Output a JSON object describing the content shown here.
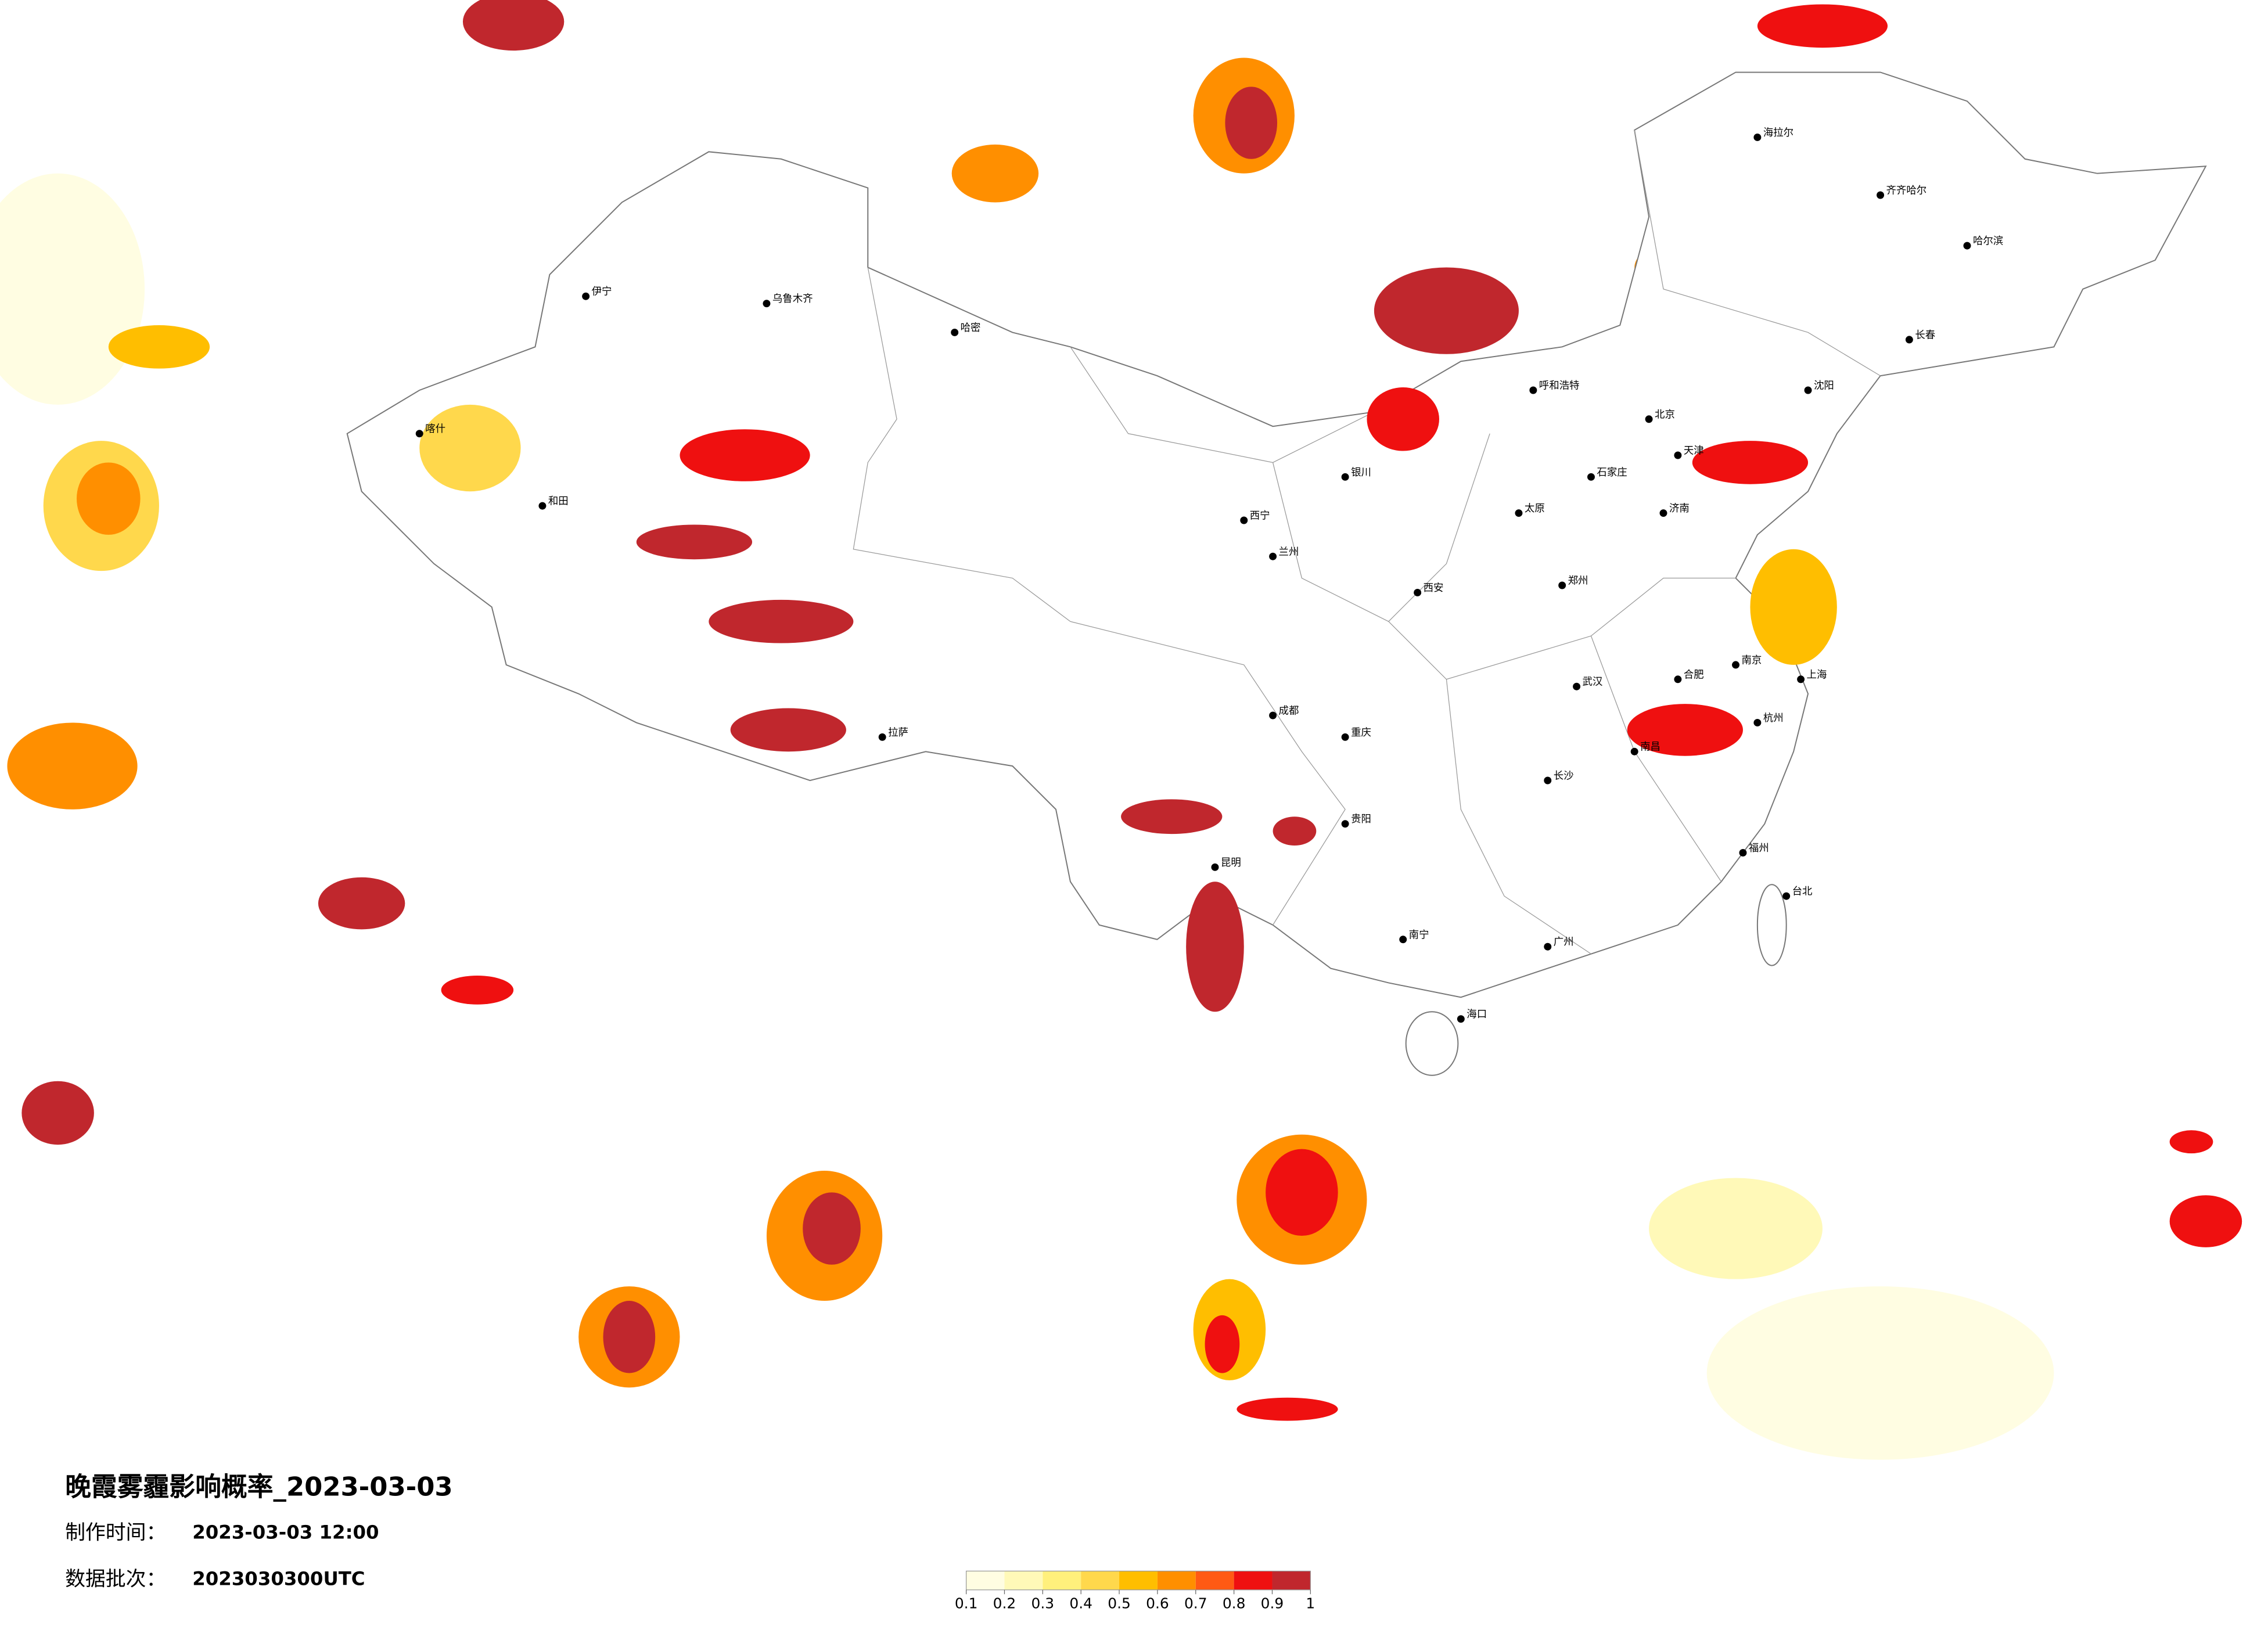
{
  "header": {
    "title": "晚霞雾霾影响概率_2023-03-03",
    "made_label": "制作时间：",
    "made_value": "2023-03-03 12:00",
    "batch_label": "数据批次：",
    "batch_value": "2023030300UTC"
  },
  "colorbar": {
    "ticks": [
      0.1,
      0.2,
      0.3,
      0.4,
      0.5,
      0.6,
      0.7,
      0.8,
      0.9,
      1
    ],
    "colors": [
      "#fffde2",
      "#fff9b8",
      "#fff07c",
      "#ffd84c",
      "#ffbe00",
      "#ff8f00",
      "#ff5a14",
      "#ef1010",
      "#c0272d"
    ]
  },
  "cities": [
    "北京",
    "天津",
    "石家庄",
    "太原",
    "济南",
    "郑州",
    "西安",
    "兰州",
    "银川",
    "呼和浩特",
    "沈阳",
    "长春",
    "哈尔滨",
    "南京",
    "上海",
    "杭州",
    "合肥",
    "武汉",
    "长沙",
    "南昌",
    "福州",
    "广州",
    "南宁",
    "贵阳",
    "昆明",
    "成都",
    "重庆",
    "拉萨",
    "西宁",
    "乌鲁木齐",
    "海口",
    "台北",
    "喀什",
    "和田",
    "伊宁",
    "哈密",
    "海拉尔",
    "齐齐哈尔"
  ]
}
